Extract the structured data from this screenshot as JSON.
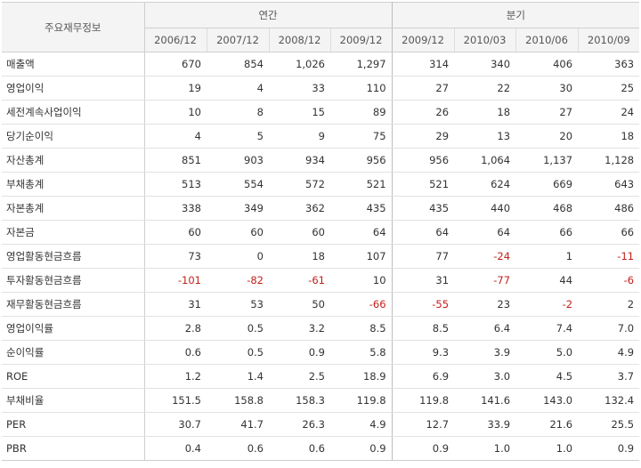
{
  "table": {
    "corner_label": "주요재무정보",
    "groups": [
      {
        "label": "연간",
        "columns": [
          "2006/12",
          "2007/12",
          "2008/12",
          "2009/12"
        ]
      },
      {
        "label": "분기",
        "columns": [
          "2009/12",
          "2010/03",
          "2010/06",
          "2010/09"
        ]
      }
    ],
    "rows": [
      {
        "label": "매출액",
        "values": [
          "670",
          "854",
          "1,026",
          "1,297",
          "314",
          "340",
          "406",
          "363"
        ]
      },
      {
        "label": "영업이익",
        "values": [
          "19",
          "4",
          "33",
          "110",
          "27",
          "22",
          "30",
          "25"
        ]
      },
      {
        "label": "세전계속사업이익",
        "values": [
          "10",
          "8",
          "15",
          "89",
          "26",
          "18",
          "27",
          "24"
        ]
      },
      {
        "label": "당기순이익",
        "values": [
          "4",
          "5",
          "9",
          "75",
          "29",
          "13",
          "20",
          "18"
        ]
      },
      {
        "label": "자산총계",
        "values": [
          "851",
          "903",
          "934",
          "956",
          "956",
          "1,064",
          "1,137",
          "1,128"
        ]
      },
      {
        "label": "부채총계",
        "values": [
          "513",
          "554",
          "572",
          "521",
          "521",
          "624",
          "669",
          "643"
        ]
      },
      {
        "label": "자본총계",
        "values": [
          "338",
          "349",
          "362",
          "435",
          "435",
          "440",
          "468",
          "486"
        ]
      },
      {
        "label": "자본금",
        "values": [
          "60",
          "60",
          "60",
          "64",
          "64",
          "64",
          "66",
          "66"
        ]
      },
      {
        "label": "영업활동현금흐름",
        "values": [
          "73",
          "0",
          "18",
          "107",
          "77",
          "-24",
          "1",
          "-11"
        ]
      },
      {
        "label": "투자활동현금흐름",
        "values": [
          "-101",
          "-82",
          "-61",
          "10",
          "31",
          "-77",
          "44",
          "-6"
        ]
      },
      {
        "label": "재무활동현금흐름",
        "values": [
          "31",
          "53",
          "50",
          "-66",
          "-55",
          "23",
          "-2",
          "2"
        ]
      },
      {
        "label": "영업이익률",
        "values": [
          "2.8",
          "0.5",
          "3.2",
          "8.5",
          "8.5",
          "6.4",
          "7.4",
          "7.0"
        ]
      },
      {
        "label": "순이익률",
        "values": [
          "0.6",
          "0.5",
          "0.9",
          "5.8",
          "9.3",
          "3.9",
          "5.0",
          "4.9"
        ]
      },
      {
        "label": "ROE",
        "values": [
          "1.2",
          "1.4",
          "2.5",
          "18.9",
          "6.9",
          "3.0",
          "4.5",
          "3.7"
        ]
      },
      {
        "label": "부채비율",
        "values": [
          "151.5",
          "158.8",
          "158.3",
          "119.8",
          "119.8",
          "141.6",
          "143.0",
          "132.4"
        ]
      },
      {
        "label": "PER",
        "values": [
          "30.7",
          "41.7",
          "26.3",
          "4.9",
          "12.7",
          "33.9",
          "21.6",
          "25.5"
        ]
      },
      {
        "label": "PBR",
        "values": [
          "0.4",
          "0.6",
          "0.6",
          "0.9",
          "0.9",
          "1.0",
          "1.0",
          "0.9"
        ]
      }
    ]
  },
  "colors": {
    "negative": "#c2211b",
    "header_bg": "#f4f4f4",
    "text": "#333333"
  }
}
